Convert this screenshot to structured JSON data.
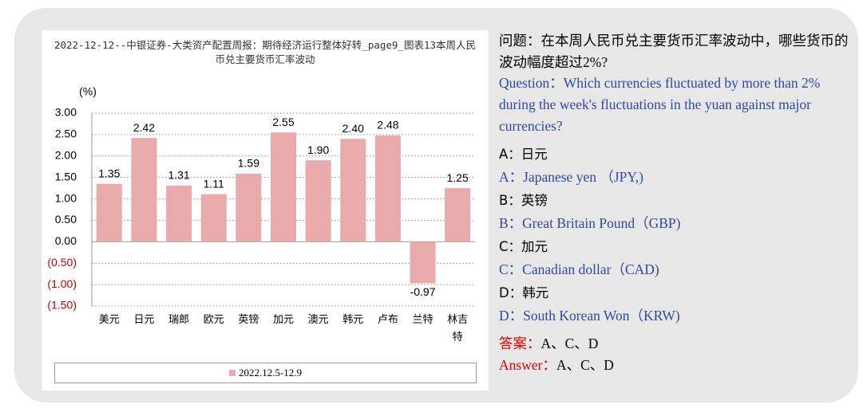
{
  "chart_data": {
    "type": "bar",
    "title": "2022-12-12--中银证券-大类资产配置周报：期待经济运行整体好转_page9_图表13本周人民币兑主要货币汇率波动",
    "y_unit": "(%)",
    "categories": [
      "美元",
      "日元",
      "瑞郎",
      "欧元",
      "英镑",
      "加元",
      "澳元",
      "韩元",
      "卢布",
      "兰特",
      "林吉特"
    ],
    "series": [
      {
        "name": "2022.12.5-12.9",
        "color": "#e8aaaa",
        "values": [
          1.35,
          2.42,
          1.31,
          1.11,
          1.59,
          2.55,
          1.9,
          2.4,
          2.48,
          -0.97,
          1.25
        ],
        "value_labels": [
          "1.35",
          "2.42",
          "1.31",
          "1.11",
          "1.59",
          "2.55",
          "1.90",
          "2.40",
          "2.48",
          "-0.97",
          "1.25"
        ]
      }
    ],
    "ylim": [
      -1.5,
      3
    ],
    "yticks": [
      {
        "value": -1.5,
        "label": "(1.50)"
      },
      {
        "value": -1,
        "label": "(1.00)"
      },
      {
        "value": -0.5,
        "label": "(0.50)"
      },
      {
        "value": 0,
        "label": "0.00"
      },
      {
        "value": 0.5,
        "label": "0.50"
      },
      {
        "value": 1,
        "label": "1.00"
      },
      {
        "value": 1.5,
        "label": "1.50"
      },
      {
        "value": 2,
        "label": "2.00"
      },
      {
        "value": 2.5,
        "label": "2.50"
      },
      {
        "value": 3,
        "label": "3.00"
      }
    ],
    "negative_tick_color": "#c00000",
    "grid": true,
    "legend": "bottom"
  },
  "qa": {
    "question_zh": "问题：在本周人民币兑主要货币汇率波动中，哪些货币的波动幅度超过2%?",
    "question_en": "Question：Which currencies fluctuated by more than 2% during the week's fluctuations in the yuan against major currencies?",
    "options": [
      {
        "zh": "A：日元",
        "en": "A：Japanese yen （JPY,)"
      },
      {
        "zh": "B：英镑",
        "en": "B：Great Britain Pound（GBP)"
      },
      {
        "zh": "C：加元",
        "en": "C：Canadian dollar（CAD)"
      },
      {
        "zh": "D：韩元",
        "en": "D：South Korean Won（KRW)"
      }
    ],
    "answer_zh": "答案：A、C、D",
    "answer_en": "Answer：A、C、D"
  }
}
